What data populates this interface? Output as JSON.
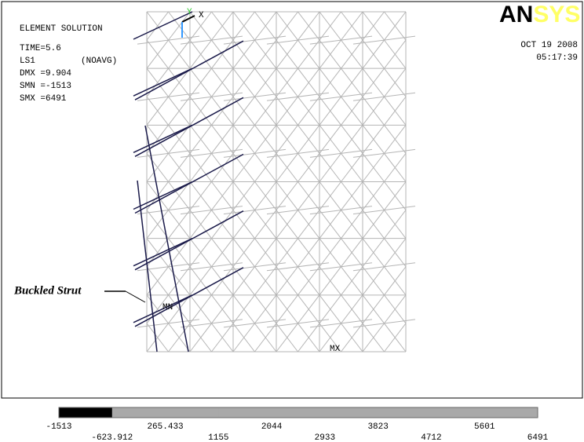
{
  "header": {
    "title": "ELEMENT SOLUTION",
    "lines": [
      "TIME=5.6",
      "LS1",
      "(NOAVG)",
      "DMX =9.904",
      "SMN =-1513",
      "SMX =6491"
    ]
  },
  "logo": {
    "dark": "AN",
    "light": "SYS"
  },
  "stamp": {
    "date": "OCT 19 2008",
    "time": "05:17:39"
  },
  "model": {
    "axis_x": "X",
    "axis_y": "Y",
    "min_label": "MN",
    "max_label": "MX"
  },
  "annotation": "Buckled Strut",
  "legend": {
    "labels": [
      "-1513",
      "-623.912",
      "265.433",
      "1155",
      "2044",
      "2933",
      "3823",
      "4712",
      "5601",
      "6491"
    ],
    "segment_colors": [
      "#000000",
      "#a9a9a9",
      "#a9a9a9",
      "#a9a9a9",
      "#a9a9a9",
      "#a9a9a9",
      "#a9a9a9",
      "#a9a9a9",
      "#a9a9a9"
    ]
  }
}
